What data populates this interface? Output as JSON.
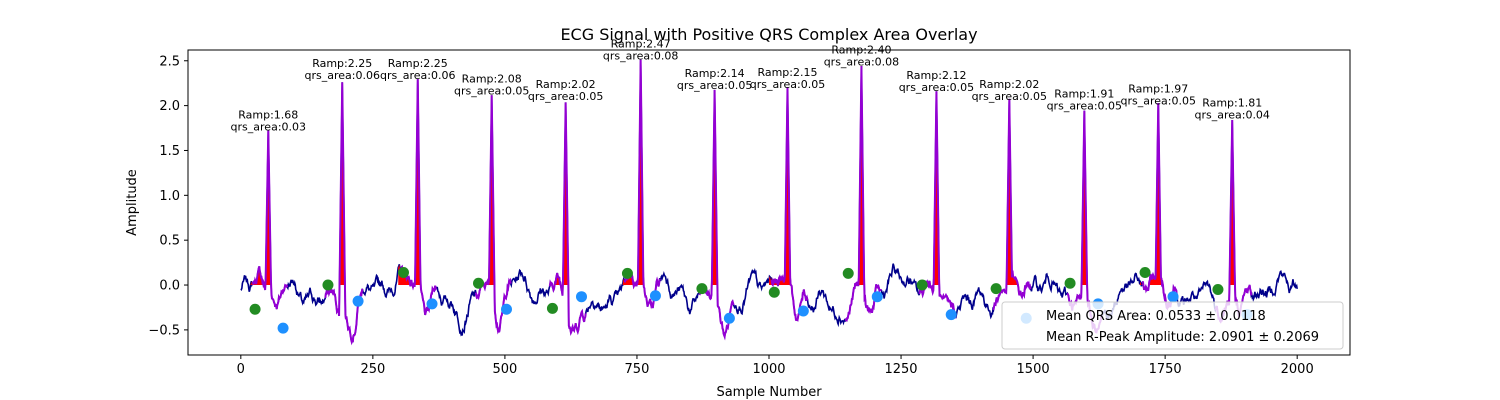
{
  "chart_data": {
    "type": "line",
    "title": "ECG Signal with Positive QRS Complex Area Overlay",
    "xlabel": "Sample Number",
    "ylabel": "Amplitude",
    "xlim": [
      -100,
      2100
    ],
    "ylim": [
      -0.78,
      2.62
    ],
    "xticks": [
      0,
      250,
      500,
      750,
      1000,
      1250,
      1500,
      1750,
      2000
    ],
    "yticks": [
      -0.5,
      0.0,
      0.5,
      1.0,
      1.5,
      2.0,
      2.5
    ],
    "xtick_labels": [
      "0",
      "250",
      "500",
      "750",
      "1000",
      "1250",
      "1500",
      "1750",
      "2000"
    ],
    "ytick_labels": [
      "−0.5",
      "0.0",
      "0.5",
      "1.0",
      "1.5",
      "2.0",
      "2.5"
    ],
    "grid": false,
    "legend_position": "lower-right",
    "colors": {
      "signal": "#00008b",
      "qrs_overlay": "#9400d3",
      "qrs_area": "#ff0000",
      "q_points": "#1e90ff",
      "s_points": "#1e90ff",
      "onset_points": "#228b22"
    },
    "r_peaks": [
      {
        "x": 52,
        "amp": 1.68,
        "area": 0.03,
        "label_ramp": "Ramp:1.68",
        "label_area": "qrs_area:0.03"
      },
      {
        "x": 192,
        "amp": 2.25,
        "area": 0.06,
        "label_ramp": "Ramp:2.25",
        "label_area": "qrs_area:0.06"
      },
      {
        "x": 335,
        "amp": 2.25,
        "area": 0.06,
        "label_ramp": "Ramp:2.25",
        "label_area": "qrs_area:0.06"
      },
      {
        "x": 475,
        "amp": 2.08,
        "area": 0.05,
        "label_ramp": "Ramp:2.08",
        "label_area": "qrs_area:0.05"
      },
      {
        "x": 615,
        "amp": 2.02,
        "area": 0.05,
        "label_ramp": "Ramp:2.02",
        "label_area": "qrs_area:0.05"
      },
      {
        "x": 757,
        "amp": 2.47,
        "area": 0.08,
        "label_ramp": "Ramp:2.47",
        "label_area": "qrs_area:0.08"
      },
      {
        "x": 897,
        "amp": 2.14,
        "area": 0.05,
        "label_ramp": "Ramp:2.14",
        "label_area": "qrs_area:0.05"
      },
      {
        "x": 1035,
        "amp": 2.15,
        "area": 0.05,
        "label_ramp": "Ramp:2.15",
        "label_area": "qrs_area:0.05"
      },
      {
        "x": 1175,
        "amp": 2.4,
        "area": 0.08,
        "label_ramp": "Ramp:2.40",
        "label_area": "qrs_area:0.08"
      },
      {
        "x": 1317,
        "amp": 2.12,
        "area": 0.05,
        "label_ramp": "Ramp:2.12",
        "label_area": "qrs_area:0.05"
      },
      {
        "x": 1455,
        "amp": 2.02,
        "area": 0.05,
        "label_ramp": "Ramp:2.02",
        "label_area": "qrs_area:0.05"
      },
      {
        "x": 1597,
        "amp": 1.91,
        "area": 0.05,
        "label_ramp": "Ramp:1.91",
        "label_area": "qrs_area:0.05"
      },
      {
        "x": 1737,
        "amp": 1.97,
        "area": 0.05,
        "label_ramp": "Ramp:1.97",
        "label_area": "qrs_area:0.05"
      },
      {
        "x": 1877,
        "amp": 1.81,
        "area": 0.04,
        "label_ramp": "Ramp:1.81",
        "label_area": "qrs_area:0.04"
      }
    ],
    "onset_points": [
      {
        "x": 27,
        "y": -0.27
      },
      {
        "x": 165,
        "y": 0.0
      },
      {
        "x": 308,
        "y": 0.14
      },
      {
        "x": 450,
        "y": 0.02
      },
      {
        "x": 590,
        "y": -0.26
      },
      {
        "x": 732,
        "y": 0.13
      },
      {
        "x": 873,
        "y": -0.04
      },
      {
        "x": 1010,
        "y": -0.08
      },
      {
        "x": 1150,
        "y": 0.13
      },
      {
        "x": 1290,
        "y": 0.0
      },
      {
        "x": 1430,
        "y": -0.04
      },
      {
        "x": 1570,
        "y": 0.02
      },
      {
        "x": 1712,
        "y": 0.14
      },
      {
        "x": 1850,
        "y": -0.05
      }
    ],
    "offset_points": [
      {
        "x": 80,
        "y": -0.48
      },
      {
        "x": 222,
        "y": -0.18
      },
      {
        "x": 362,
        "y": -0.21
      },
      {
        "x": 503,
        "y": -0.27
      },
      {
        "x": 645,
        "y": -0.13
      },
      {
        "x": 785,
        "y": -0.12
      },
      {
        "x": 925,
        "y": -0.37
      },
      {
        "x": 1065,
        "y": -0.29
      },
      {
        "x": 1205,
        "y": -0.13
      },
      {
        "x": 1345,
        "y": -0.33
      },
      {
        "x": 1487,
        "y": -0.37
      },
      {
        "x": 1623,
        "y": -0.21
      },
      {
        "x": 1765,
        "y": -0.13
      },
      {
        "x": 1905,
        "y": -0.33
      }
    ],
    "signal_x_range": [
      0,
      2000
    ],
    "legend": [
      {
        "label": "Mean QRS Area: 0.0533 ± 0.0118"
      },
      {
        "label": "Mean R-Peak Amplitude: 2.0901 ± 0.2069"
      }
    ]
  }
}
